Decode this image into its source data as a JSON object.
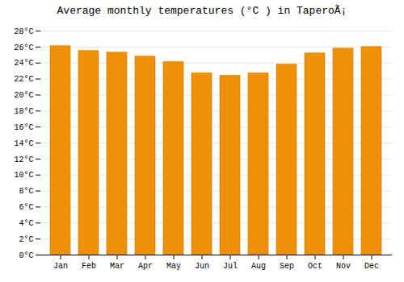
{
  "chart_data": {
    "type": "bar",
    "title": "Average monthly temperatures (°C ) in TaperoÃ¡",
    "categories": [
      "Jan",
      "Feb",
      "Mar",
      "Apr",
      "May",
      "Jun",
      "Jul",
      "Aug",
      "Sep",
      "Oct",
      "Nov",
      "Dec"
    ],
    "values": [
      26.1,
      25.5,
      25.3,
      24.8,
      24.1,
      22.7,
      22.4,
      22.7,
      23.8,
      25.2,
      25.8,
      26.0
    ],
    "color": "#F0900A",
    "ylim": [
      0,
      28
    ],
    "yticks": [
      {
        "value": 0,
        "label": "0°C"
      },
      {
        "value": 2,
        "label": "2°C"
      },
      {
        "value": 4,
        "label": "4°C"
      },
      {
        "value": 6,
        "label": "6°C"
      },
      {
        "value": 8,
        "label": "8°C"
      },
      {
        "value": 10,
        "label": "10°C"
      },
      {
        "value": 12,
        "label": "12°C"
      },
      {
        "value": 14,
        "label": "14°C"
      },
      {
        "value": 16,
        "label": "16°C"
      },
      {
        "value": 18,
        "label": "18°C"
      },
      {
        "value": 20,
        "label": "20°C"
      },
      {
        "value": 22,
        "label": "22°C"
      },
      {
        "value": 24,
        "label": "24°C"
      },
      {
        "value": 26,
        "label": "26°C"
      },
      {
        "value": 28,
        "label": "28°C"
      }
    ],
    "grid": true
  }
}
